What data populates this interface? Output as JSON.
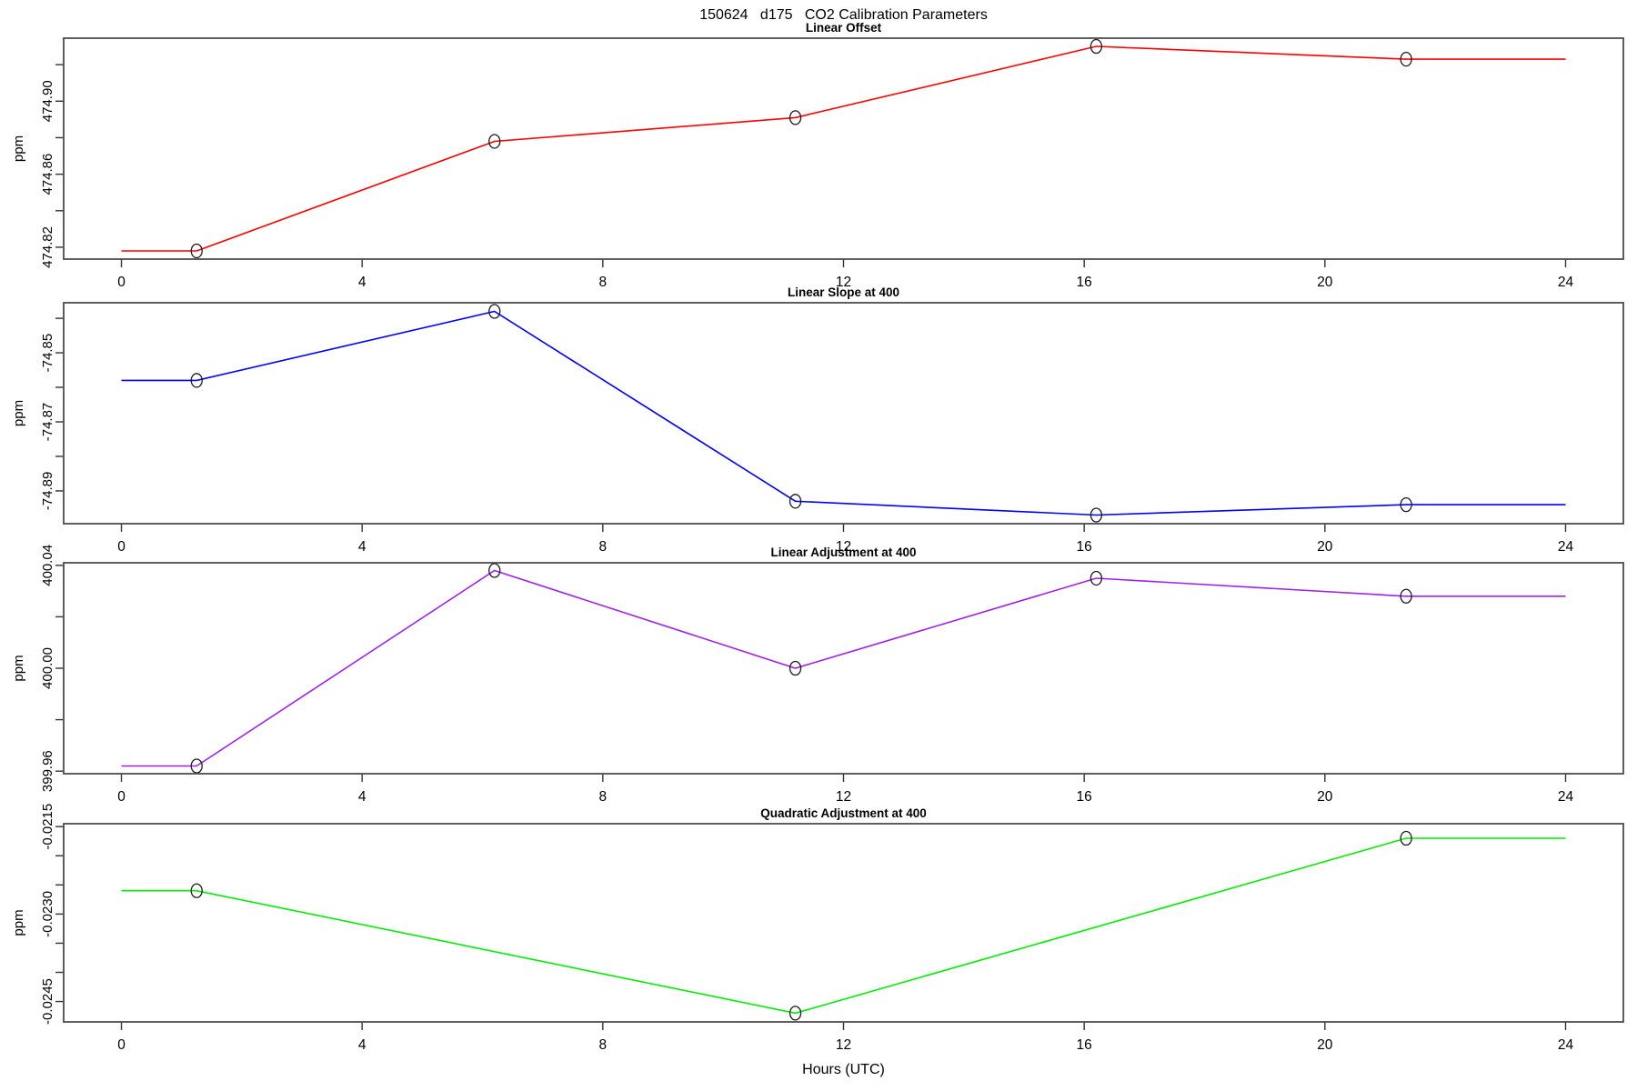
{
  "title": "150624   d175   CO2 Calibration Parameters",
  "xlabel": "Hours (UTC)",
  "background_color": "#ffffff",
  "axis": {
    "xlim": [
      -0.96,
      24.96
    ],
    "xticks": [
      0,
      4,
      8,
      12,
      16,
      20,
      24
    ],
    "xtick_labels": [
      "0",
      "4",
      "8",
      "12",
      "16",
      "20",
      "24"
    ]
  },
  "chart_data": [
    {
      "type": "line",
      "title": "Linear Offset",
      "ylabel": "ppm",
      "color": "#ff0000",
      "marker": "open-circle",
      "x": [
        1.25,
        6.2,
        11.2,
        16.2,
        21.35
      ],
      "values": [
        474.818,
        474.878,
        474.891,
        474.93,
        474.923
      ],
      "flat_extension_x": [
        0,
        24
      ],
      "ylim": [
        474.8135,
        474.9345
      ],
      "yticks": [
        {
          "value": 474.82,
          "label": "474.82"
        },
        {
          "value": 474.84,
          "label": ""
        },
        {
          "value": 474.86,
          "label": "474.86"
        },
        {
          "value": 474.88,
          "label": ""
        },
        {
          "value": 474.9,
          "label": "474.90"
        },
        {
          "value": 474.92,
          "label": ""
        }
      ]
    },
    {
      "type": "line",
      "title": "Linear Slope at 400",
      "ylabel": "ppm",
      "color": "#0000ff",
      "marker": "open-circle",
      "x": [
        1.25,
        6.2,
        11.2,
        16.2,
        21.35
      ],
      "values": [
        -74.858,
        -74.838,
        -74.893,
        -74.897,
        -74.894
      ],
      "flat_extension_x": [
        0,
        24
      ],
      "ylim": [
        -74.8995,
        -74.8355
      ],
      "yticks": [
        {
          "value": -74.84,
          "label": ""
        },
        {
          "value": -74.85,
          "label": "-74.85"
        },
        {
          "value": -74.86,
          "label": ""
        },
        {
          "value": -74.87,
          "label": "-74.87"
        },
        {
          "value": -74.88,
          "label": ""
        },
        {
          "value": -74.89,
          "label": "-74.89"
        }
      ]
    },
    {
      "type": "line",
      "title": "Linear Adjustment at 400",
      "ylabel": "ppm",
      "color": "#a020f0",
      "marker": "open-circle",
      "x": [
        1.25,
        6.2,
        11.2,
        16.2,
        21.35
      ],
      "values": [
        399.962,
        400.038,
        400.0,
        400.035,
        400.028
      ],
      "flat_extension_x": [
        0,
        24
      ],
      "ylim": [
        399.959,
        400.041
      ],
      "yticks": [
        {
          "value": 400.04,
          "label": "400.04"
        },
        {
          "value": 400.02,
          "label": ""
        },
        {
          "value": 400.0,
          "label": "400.00"
        },
        {
          "value": 399.98,
          "label": ""
        },
        {
          "value": 399.96,
          "label": "399.96"
        }
      ]
    },
    {
      "type": "line",
      "title": "Quadratic Adjustment at 400",
      "ylabel": "ppm",
      "color": "#00ee00",
      "marker": "open-circle",
      "x": [
        1.25,
        11.2,
        21.35
      ],
      "values": [
        -0.0226,
        -0.0247,
        -0.0217
      ],
      "flat_extension_x": [
        0,
        24
      ],
      "ylim": [
        -0.02485,
        -0.02145
      ],
      "yticks": [
        {
          "value": -0.0215,
          "label": "-0.0215"
        },
        {
          "value": -0.022,
          "label": ""
        },
        {
          "value": -0.0225,
          "label": ""
        },
        {
          "value": -0.023,
          "label": "-0.0230"
        },
        {
          "value": -0.0235,
          "label": ""
        },
        {
          "value": -0.024,
          "label": ""
        },
        {
          "value": -0.0245,
          "label": "-0.0245"
        }
      ]
    }
  ]
}
